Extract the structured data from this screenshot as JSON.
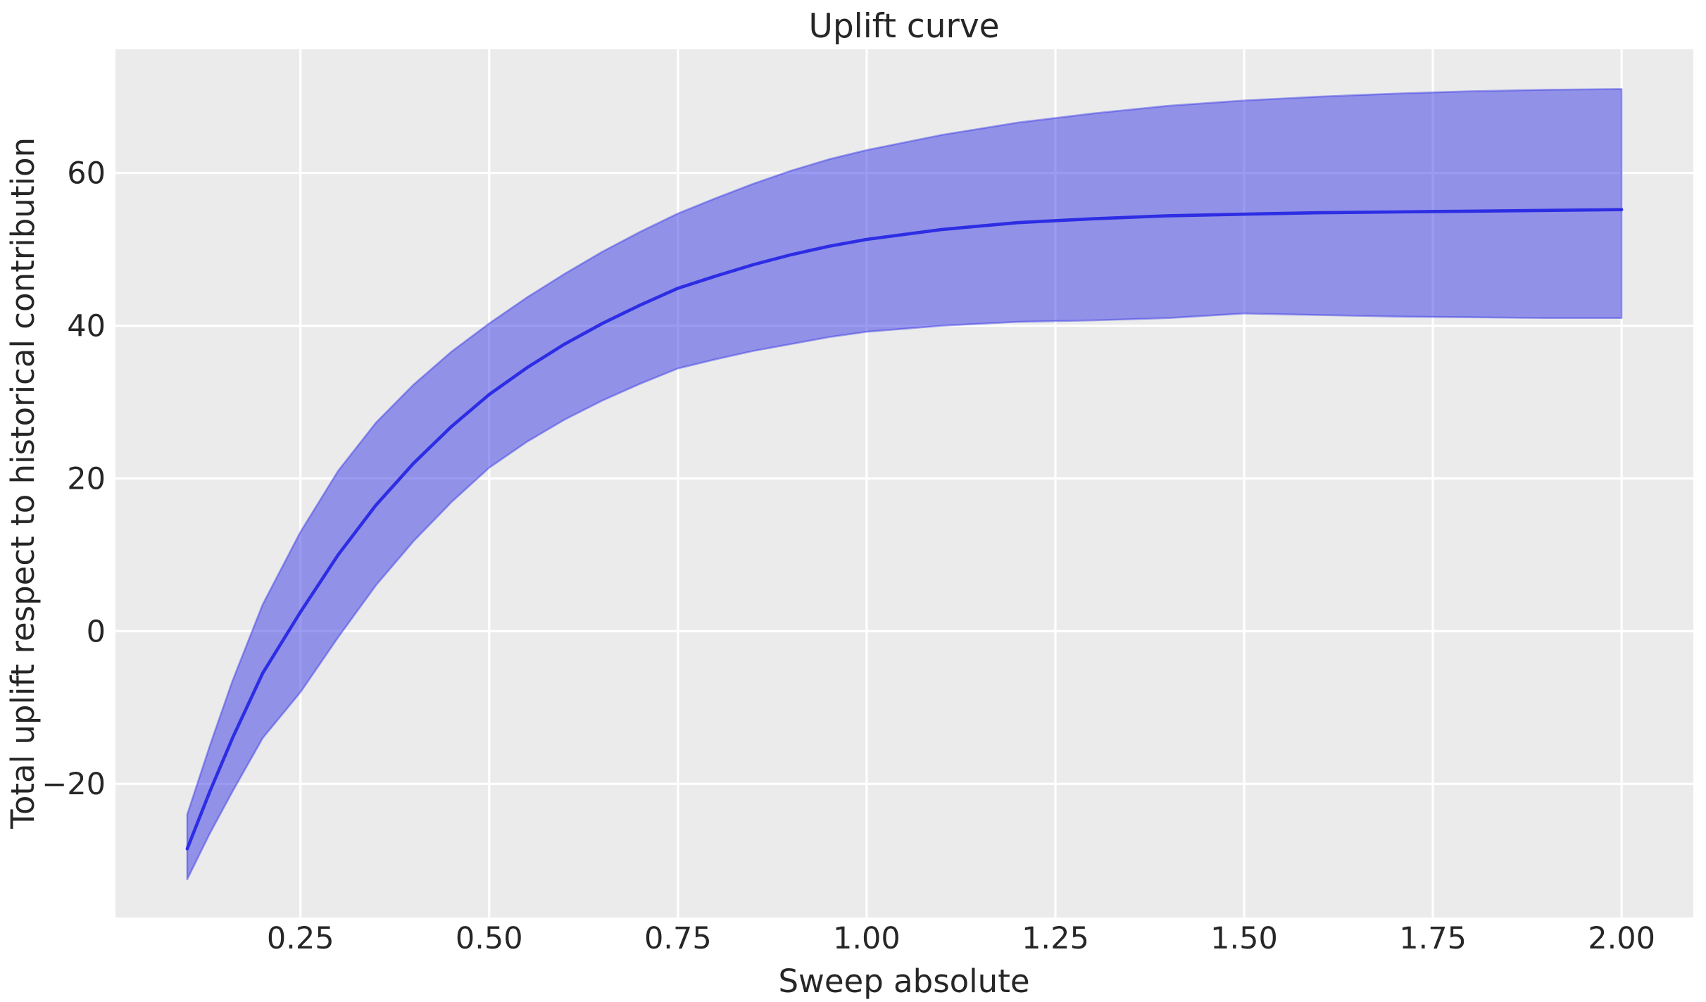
{
  "figure": {
    "title": "Uplift curve",
    "xlabel": "Sweep absolute",
    "ylabel": "Total uplift respect to historical contribution"
  },
  "chart_data": {
    "type": "line",
    "title": "Uplift curve",
    "xlabel": "Sweep absolute",
    "ylabel": "Total uplift respect to historical contribution",
    "legend": "none",
    "grid": true,
    "xlim": [
      0.005,
      2.095
    ],
    "ylim": [
      -37.5,
      76.2
    ],
    "xticks": [
      {
        "value": 0.25,
        "label": "0.25"
      },
      {
        "value": 0.5,
        "label": "0.50"
      },
      {
        "value": 0.75,
        "label": "0.75"
      },
      {
        "value": 1.0,
        "label": "1.00"
      },
      {
        "value": 1.25,
        "label": "1.25"
      },
      {
        "value": 1.5,
        "label": "1.50"
      },
      {
        "value": 1.75,
        "label": "1.75"
      },
      {
        "value": 2.0,
        "label": "2.00"
      }
    ],
    "yticks": [
      {
        "value": 60,
        "label": "60"
      },
      {
        "value": 40,
        "label": "40"
      },
      {
        "value": 20,
        "label": "20"
      },
      {
        "value": 0,
        "label": "0"
      },
      {
        "value": -20,
        "label": "−20"
      }
    ],
    "x": [
      0.1,
      0.13,
      0.16,
      0.2,
      0.25,
      0.3,
      0.35,
      0.4,
      0.45,
      0.5,
      0.55,
      0.6,
      0.65,
      0.7,
      0.75,
      0.8,
      0.85,
      0.9,
      0.95,
      1.0,
      1.1,
      1.2,
      1.3,
      1.4,
      1.5,
      1.6,
      1.7,
      1.8,
      1.9,
      2.0
    ],
    "series": [
      {
        "name": "mean uplift",
        "values": [
          -28.5,
          -21.0,
          -14.0,
          -5.5,
          2.5,
          10.0,
          16.5,
          22.0,
          26.8,
          31.0,
          34.5,
          37.6,
          40.3,
          42.7,
          44.9,
          46.5,
          48.0,
          49.3,
          50.4,
          51.3,
          52.6,
          53.5,
          54.0,
          54.4,
          54.6,
          54.8,
          54.9,
          55.0,
          55.1,
          55.2
        ]
      },
      {
        "name": "confidence band upper",
        "values": [
          -24.0,
          -15.0,
          -6.5,
          3.5,
          13.0,
          21.0,
          27.3,
          32.3,
          36.6,
          40.3,
          43.7,
          46.8,
          49.7,
          52.3,
          54.7,
          56.7,
          58.6,
          60.3,
          61.8,
          63.0,
          65.0,
          66.6,
          67.8,
          68.8,
          69.5,
          70.0,
          70.4,
          70.7,
          70.9,
          71.0
        ]
      },
      {
        "name": "confidence band lower",
        "values": [
          -32.5,
          -26.5,
          -21.0,
          -14.0,
          -8.0,
          -0.8,
          6.0,
          11.8,
          16.9,
          21.4,
          24.8,
          27.7,
          30.2,
          32.4,
          34.4,
          35.6,
          36.7,
          37.6,
          38.5,
          39.2,
          40.0,
          40.5,
          40.7,
          41.0,
          41.6,
          41.4,
          41.2,
          41.1,
          41.0,
          41.0
        ]
      }
    ],
    "colors": {
      "line": "#2d2de4",
      "band_fill": "rgba(45,45,228,0.48)",
      "band_edge": "rgba(45,45,228,0.42)",
      "plot_bg": "#ebebeb",
      "grid": "#ffffff",
      "text": "#262626",
      "figure_bg": "#ffffff"
    }
  }
}
